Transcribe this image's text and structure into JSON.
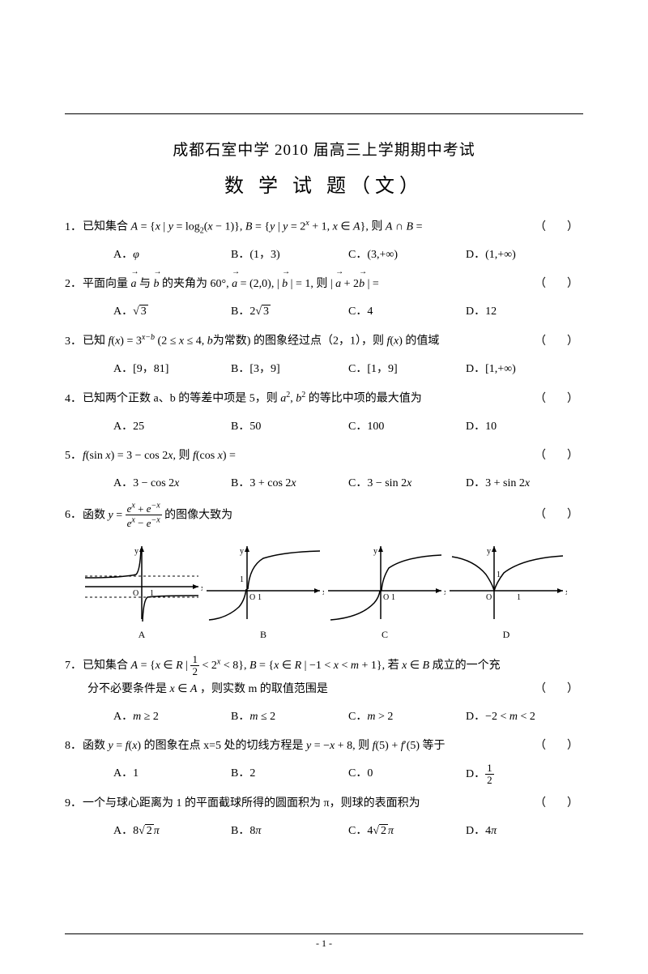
{
  "header": {
    "title1": "成都石室中学 2010 届高三上学期期中考试",
    "title2": "数 学 试 题（文）"
  },
  "questions": [
    {
      "num": "1．",
      "text_html": "已知集合 <i>A</i> = {<i>x</i> | <i>y</i> = log<span class='sub'>2</span>(<i>x</i> − 1)}, <i>B</i> = {<i>y</i> | <i>y</i> = 2<span class='sup'><i>x</i></span> + 1, <i>x</i> ∈ <i>A</i>}, 则 <i>A</i> ∩ <i>B</i> =",
      "options": [
        "A．<i>φ</i>",
        "B．(1，3)",
        "C．(3,+∞)",
        "D．(1,+∞)"
      ]
    },
    {
      "num": "2．",
      "text_html": "平面向量 <span class='vec'><i>a</i></span> 与 <span class='vec'><i>b</i></span> 的夹角为 60°, <span class='vec'><i>a</i></span> = (2,0), | <span class='vec'><i>b</i></span> | = 1, 则 | <span class='vec'><i>a</i></span> + 2<span class='vec'><i>b</i></span> | =",
      "options": [
        "A．√<span class='sqrt'>3</span>",
        "B．2√<span class='sqrt'>3</span>",
        "C．4",
        "D．12"
      ]
    },
    {
      "num": "3．",
      "text_html": "已知 <i>f</i>(<i>x</i>) = 3<span class='sup'><i>x−b</i></span> (2 ≤ <i>x</i> ≤ 4, <i>b</i>为常数) 的图象经过点（2，1），则 <i>f</i>(<i>x</i>) 的值域",
      "options": [
        "A．[9，81]",
        "B．[3，9]",
        "C．[1，9]",
        "D．[1,+∞)"
      ]
    },
    {
      "num": "4．",
      "text_html": "已知两个正数 a、b 的等差中项是 5，则 <i>a</i><span class='sup'>2</span>, <i>b</i><span class='sup'>2</span> 的等比中项的最大值为",
      "options": [
        "A．25",
        "B．50",
        "C．100",
        "D．10"
      ]
    },
    {
      "num": "5．",
      "text_html": "<i>f</i>(sin <i>x</i>) = 3 − cos 2<i>x</i>, 则 <i>f</i>(cos <i>x</i>) =",
      "options": [
        "A．3 − cos 2<i>x</i>",
        "B．3 + cos 2<i>x</i>",
        "C．3 − sin 2<i>x</i>",
        "D．3 + sin 2<i>x</i>"
      ]
    },
    {
      "num": "6．",
      "text_html": "函数 <i>y</i> = <span class='frac'><span class='num'><i>e<span class=\"sup\">x</span></i> + <i>e<span class=\"sup\">−x</span></i></span><span class='den'><i>e<span class=\"sup\">x</span></i> − <i>e<span class=\"sup\">−x</span></i></span></span> 的图像大致为",
      "options": null
    },
    {
      "num": "7．",
      "text_html": "已知集合 <i>A</i> = {<i>x</i> ∈ <i>R</i> | <span class='frac'><span class='num'>1</span><span class='den'>2</span></span> &lt; 2<span class='sup'><i>x</i></span> &lt; 8}, <i>B</i> = {<i>x</i> ∈ <i>R</i> | −1 &lt; <i>x</i> &lt; <i>m</i> + 1}, 若 <i>x</i> ∈ <i>B</i> 成立的一个充",
      "text2_html": "分不必要条件是 <i>x</i> ∈ <i>A</i> ，则实数 m 的取值范围是",
      "options": [
        "A．<i>m</i> ≥ 2",
        "B．<i>m</i> ≤ 2",
        "C．<i>m</i> &gt; 2",
        "D．−2 &lt; <i>m</i> &lt; 2"
      ]
    },
    {
      "num": "8．",
      "text_html": "函数 <i>y</i> = <i>f</i>(<i>x</i>) 的图象在点 x=5 处的切线方程是 <i>y</i> = −<i>x</i> + 8, 则 <i>f</i>(5) + <i>f</i>ʹ(5) 等于",
      "options": [
        "A．1",
        "B．2",
        "C．0",
        "D．<span class='frac'><span class='num'>1</span><span class='den'>2</span></span>"
      ]
    },
    {
      "num": "9．",
      "text_html": "一个与球心距离为 1 的平面截球所得的圆面积为 π，则球的表面积为",
      "options": [
        "A．8√<span class='sqrt'>2</span><i>π</i>",
        "B．8<i>π</i>",
        "C．4√<span class='sqrt'>2</span><i>π</i>",
        "D．4<i>π</i>"
      ]
    }
  ],
  "graphs": {
    "labels": [
      "A",
      "B",
      "C",
      "D"
    ],
    "stroke": "#000000",
    "stroke_width": 1.5
  },
  "footer": {
    "page": "- 1 -"
  },
  "colors": {
    "text": "#000000",
    "bg": "#ffffff",
    "rule": "#000000"
  }
}
